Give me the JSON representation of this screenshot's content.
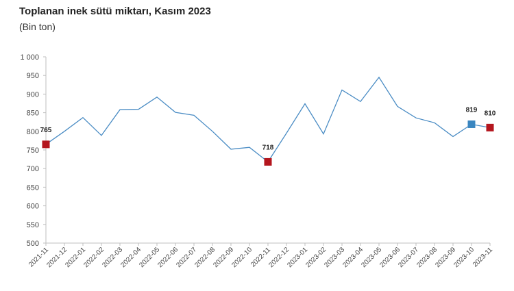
{
  "title": "Toplanan inek sütü miktarı, Kasım 2023",
  "subtitle": "(Bin ton)",
  "colors": {
    "line": "#4a8cc4",
    "marker_red": "#b4161e",
    "marker_blue": "#3a86c0",
    "axis": "#bfbfbf",
    "text": "#222222"
  },
  "chart_data": {
    "type": "line",
    "title": "Toplanan inek sütü miktarı, Kasım 2023",
    "subtitle": "(Bin ton)",
    "categories": [
      "2021-11",
      "2021-12",
      "2022-01",
      "2022-02",
      "2022-03",
      "2022-04",
      "2022-05",
      "2022-06",
      "2022-07",
      "2022-08",
      "2022-09",
      "2022-10",
      "2022-11",
      "2022-12",
      "2023-01",
      "2023-02",
      "2023-03",
      "2023-04",
      "2023-05",
      "2023-06",
      "2023-07",
      "2023-08",
      "2023-09",
      "2023-10",
      "2023-11"
    ],
    "series": [
      {
        "values": [
          765,
          800,
          837,
          789,
          858,
          859,
          892,
          851,
          843,
          800,
          752,
          757,
          718,
          795,
          874,
          793,
          911,
          880,
          945,
          867,
          836,
          823,
          786,
          819,
          810
        ]
      }
    ],
    "ylim": [
      500,
      1000
    ],
    "yticks": [
      500,
      550,
      600,
      650,
      700,
      750,
      800,
      850,
      900,
      950,
      1000
    ],
    "ytick_labels": [
      "500",
      "550",
      "600",
      "650",
      "700",
      "750",
      "800",
      "850",
      "900",
      "950",
      "1 000"
    ],
    "grid": false,
    "legend": "none",
    "markers": [
      {
        "index": 0,
        "label": "765",
        "color": "red"
      },
      {
        "index": 12,
        "label": "718",
        "color": "red"
      },
      {
        "index": 23,
        "label": "819",
        "color": "blue"
      },
      {
        "index": 24,
        "label": "810",
        "color": "red"
      }
    ]
  }
}
